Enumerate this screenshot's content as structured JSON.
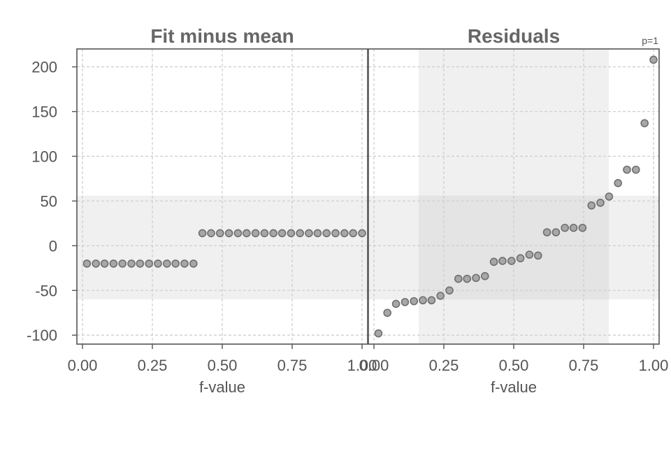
{
  "chart_data": {
    "type": "scatter",
    "ylim": [
      -110,
      220
    ],
    "yticks": [
      200,
      150,
      100,
      50,
      0,
      -50,
      -100
    ],
    "ytick_labels": [
      "200",
      "150",
      "100",
      "50",
      "0",
      "-50",
      "-100"
    ],
    "xlim": [
      -0.02,
      1.02
    ],
    "xticks": [
      0.0,
      0.25,
      0.5,
      0.75,
      1.0
    ],
    "xtick_labels": [
      "0.00",
      "0.25",
      "0.50",
      "0.75",
      "1.00"
    ],
    "corner_label": "p=1",
    "colors": {
      "band": "#f0f0f0",
      "overlap": "#e4e4e4",
      "point_fill": "#a7a7a7",
      "point_stroke": "#6f6f6f"
    },
    "panels": [
      {
        "title": "Fit minus mean",
        "xlabel": "f-value",
        "band_y": [
          -60,
          56
        ],
        "band_x": null,
        "points": [
          [
            0.016,
            -20
          ],
          [
            0.048,
            -20
          ],
          [
            0.079,
            -20
          ],
          [
            0.111,
            -20
          ],
          [
            0.143,
            -20
          ],
          [
            0.175,
            -20
          ],
          [
            0.206,
            -20
          ],
          [
            0.238,
            -20
          ],
          [
            0.27,
            -20
          ],
          [
            0.302,
            -20
          ],
          [
            0.333,
            -20
          ],
          [
            0.365,
            -20
          ],
          [
            0.397,
            -20
          ],
          [
            0.429,
            14
          ],
          [
            0.46,
            14
          ],
          [
            0.492,
            14
          ],
          [
            0.524,
            14
          ],
          [
            0.556,
            14
          ],
          [
            0.587,
            14
          ],
          [
            0.619,
            14
          ],
          [
            0.651,
            14
          ],
          [
            0.683,
            14
          ],
          [
            0.714,
            14
          ],
          [
            0.746,
            14
          ],
          [
            0.778,
            14
          ],
          [
            0.81,
            14
          ],
          [
            0.841,
            14
          ],
          [
            0.873,
            14
          ],
          [
            0.905,
            14
          ],
          [
            0.937,
            14
          ],
          [
            0.968,
            14
          ],
          [
            1.0,
            14
          ]
        ]
      },
      {
        "title": "Residuals",
        "xlabel": "f-value",
        "band_y": [
          -60,
          56
        ],
        "band_x": [
          0.16,
          0.84
        ],
        "points": [
          [
            0.016,
            -98
          ],
          [
            0.048,
            -75
          ],
          [
            0.079,
            -65
          ],
          [
            0.111,
            -63
          ],
          [
            0.143,
            -62
          ],
          [
            0.175,
            -61
          ],
          [
            0.206,
            -61
          ],
          [
            0.238,
            -56
          ],
          [
            0.27,
            -50
          ],
          [
            0.302,
            -37
          ],
          [
            0.333,
            -37
          ],
          [
            0.365,
            -36
          ],
          [
            0.397,
            -34
          ],
          [
            0.429,
            -18
          ],
          [
            0.46,
            -17
          ],
          [
            0.492,
            -17
          ],
          [
            0.524,
            -14
          ],
          [
            0.556,
            -10
          ],
          [
            0.587,
            -11
          ],
          [
            0.619,
            15
          ],
          [
            0.651,
            15
          ],
          [
            0.683,
            20
          ],
          [
            0.714,
            20
          ],
          [
            0.746,
            20
          ],
          [
            0.778,
            45
          ],
          [
            0.81,
            48
          ],
          [
            0.841,
            55
          ],
          [
            0.873,
            70
          ],
          [
            0.905,
            85
          ],
          [
            0.937,
            85
          ],
          [
            0.968,
            137
          ],
          [
            1.0,
            208
          ]
        ]
      }
    ]
  }
}
